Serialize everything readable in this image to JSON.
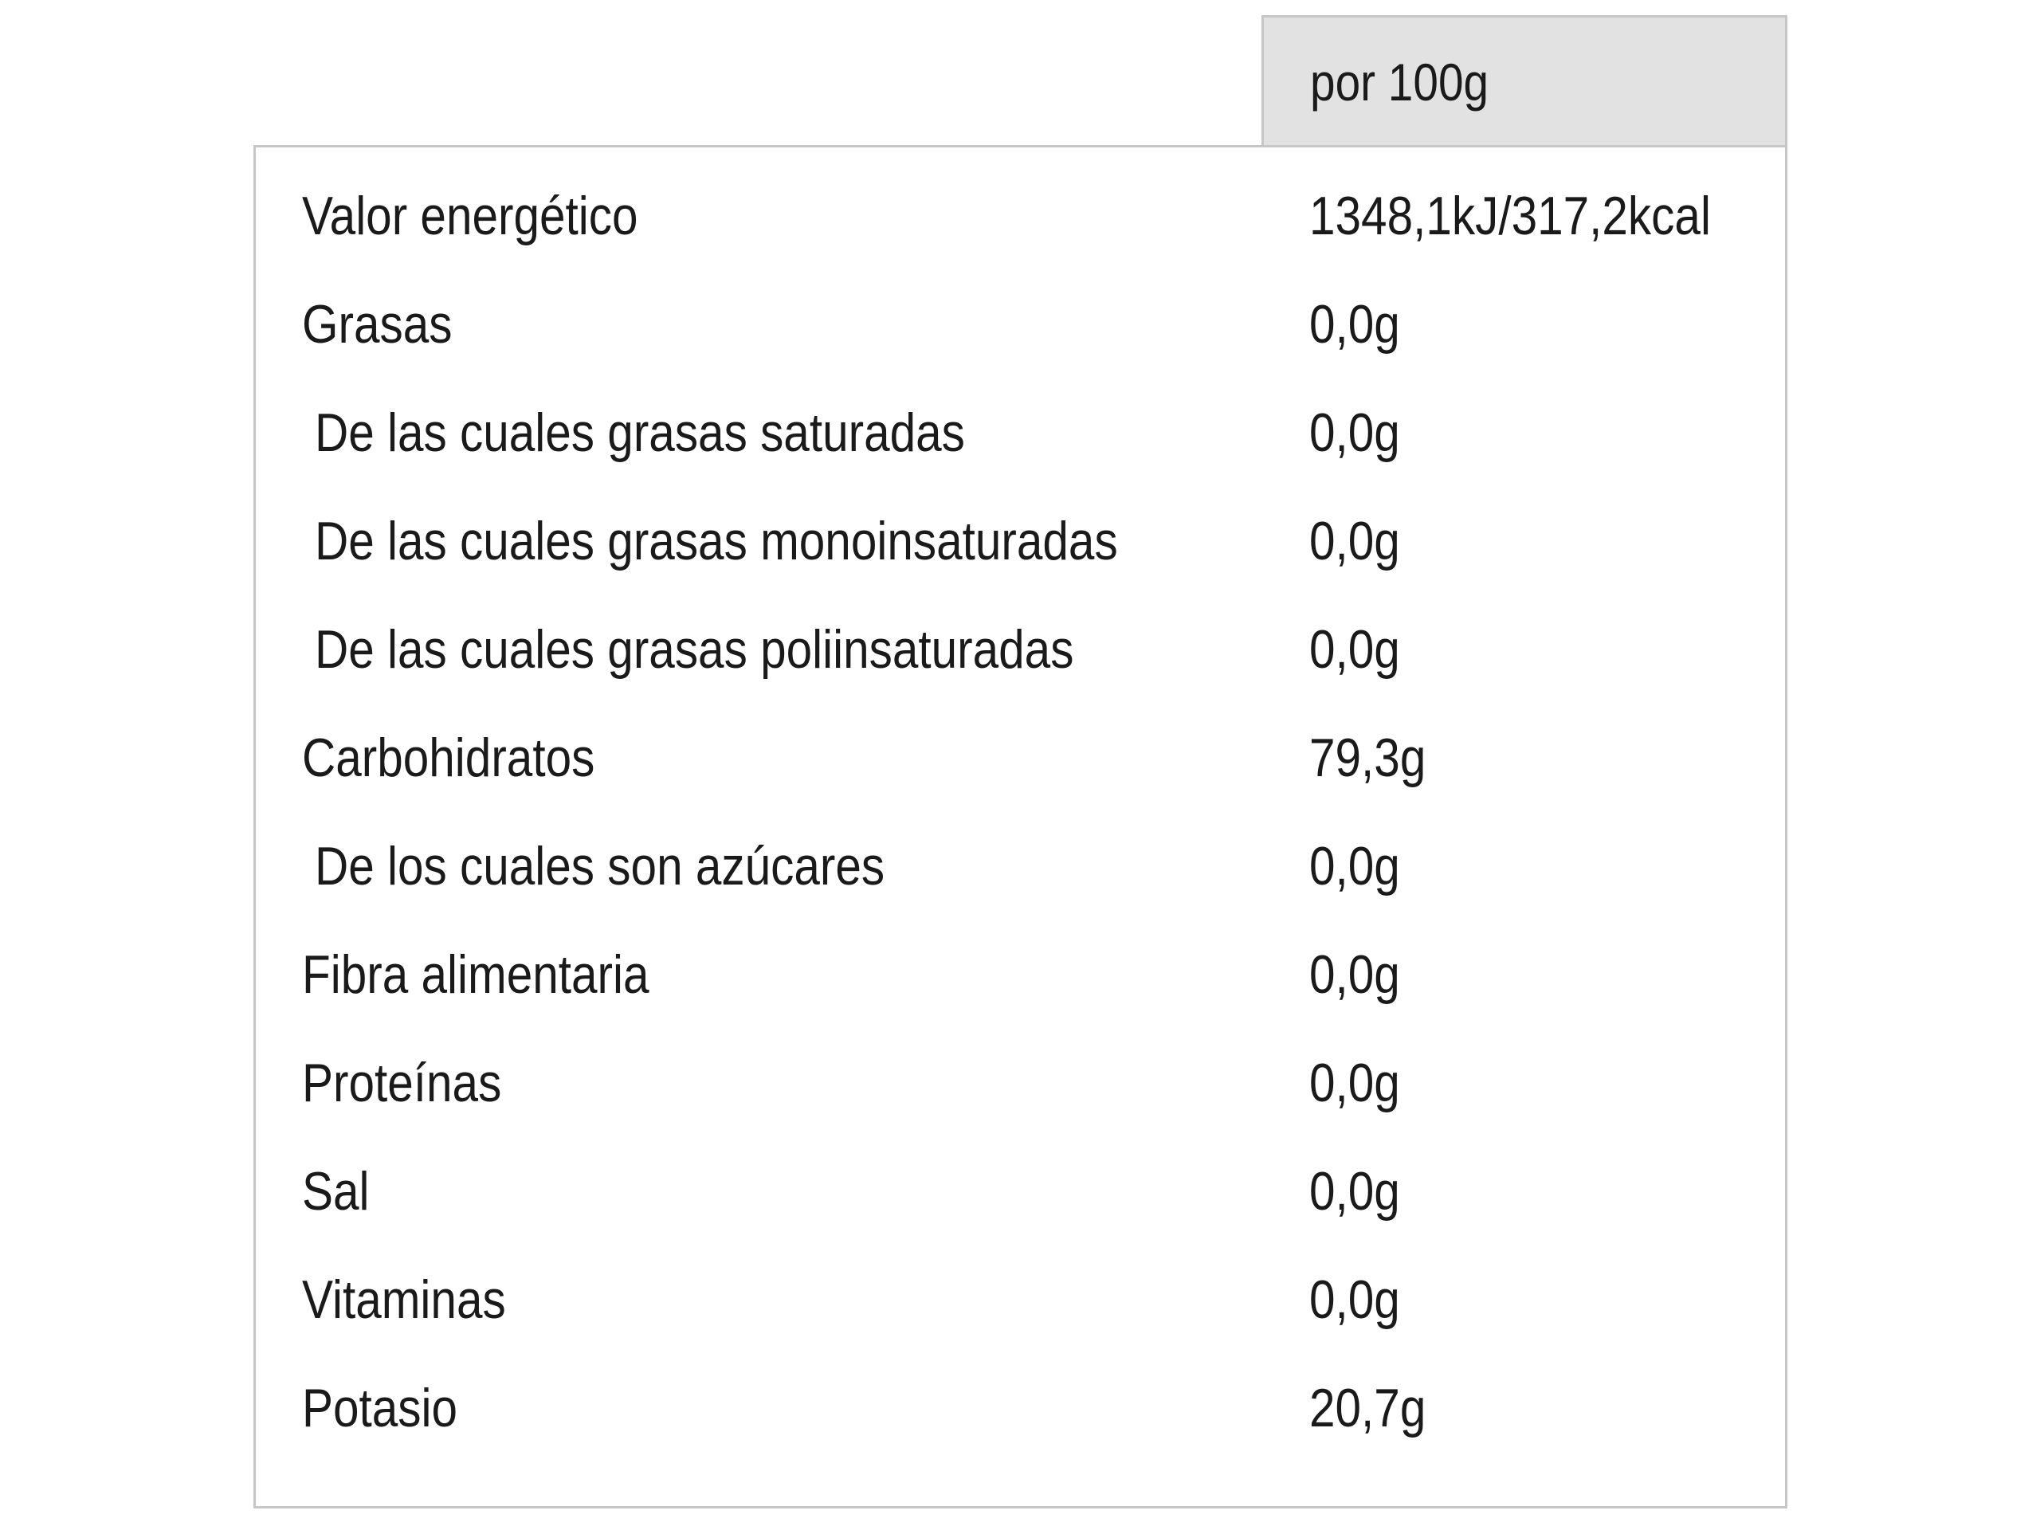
{
  "table": {
    "header": "por 100g",
    "rows": [
      {
        "label": "Valor energético",
        "value": "1348,1kJ/317,2kcal",
        "sub": false
      },
      {
        "label": "Grasas",
        "value": "0,0g",
        "sub": false
      },
      {
        "label": "De las cuales grasas saturadas",
        "value": "0,0g",
        "sub": true
      },
      {
        "label": "De las cuales grasas monoinsaturadas",
        "value": "0,0g",
        "sub": true
      },
      {
        "label": "De las cuales grasas poliinsaturadas",
        "value": "0,0g",
        "sub": true
      },
      {
        "label": "Carbohidratos",
        "value": "79,3g",
        "sub": false
      },
      {
        "label": "De los cuales son azúcares",
        "value": "0,0g",
        "sub": true
      },
      {
        "label": "Fibra alimentaria",
        "value": "0,0g",
        "sub": false
      },
      {
        "label": "Proteínas",
        "value": "0,0g",
        "sub": false
      },
      {
        "label": "Sal",
        "value": "0,0g",
        "sub": false
      },
      {
        "label": "Vitaminas",
        "value": "0,0g",
        "sub": false
      },
      {
        "label": "Potasio",
        "value": "20,7g",
        "sub": false
      }
    ]
  }
}
